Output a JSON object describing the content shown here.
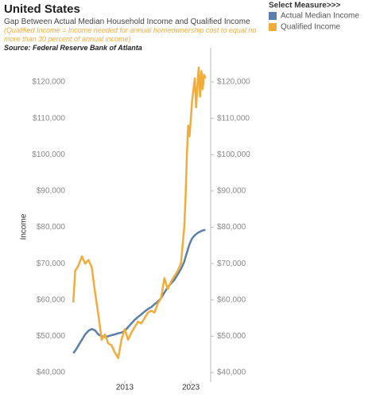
{
  "chart_data": {
    "type": "line",
    "title": "United States",
    "subtitle": "Gap Between Actual Median Household Income and Qualified Income",
    "note": "(Qualified Income = Income needed for annual homeownership cost to equal no more than 30 percent of annual income)",
    "source": "Source: Federal Reserve Bank of Atlanta",
    "legend_title": "Select Measure>>>",
    "y_label": "Income",
    "x": [
      2005.2,
      2005.5,
      2006,
      2006.5,
      2007,
      2007.5,
      2008,
      2008.5,
      2009,
      2009.5,
      2010,
      2010.5,
      2011,
      2011.5,
      2012,
      2012.5,
      2013,
      2013.5,
      2014,
      2014.5,
      2015,
      2015.5,
      2016,
      2016.5,
      2017,
      2017.5,
      2018,
      2018.5,
      2019,
      2019.5,
      2020,
      2020.5,
      2021,
      2021.5,
      2022,
      2022.2,
      2022.4,
      2022.6,
      2022.8,
      2023,
      2023.2,
      2023.4,
      2023.6,
      2023.8,
      2024,
      2024.2,
      2024.4,
      2024.6,
      2024.8,
      2025,
      2025.2
    ],
    "series": [
      {
        "name": "Actual Median Income",
        "color": "#5b7fa8",
        "values": [
          45300,
          46000,
          47500,
          49000,
          50500,
          51500,
          52000,
          51600,
          50500,
          50000,
          49800,
          50000,
          50300,
          50500,
          50800,
          51000,
          51500,
          52500,
          53500,
          54500,
          55300,
          56000,
          56800,
          57500,
          58000,
          58800,
          59500,
          60500,
          62000,
          63500,
          64500,
          65500,
          67000,
          68500,
          70500,
          71800,
          73000,
          74200,
          75300,
          76200,
          76900,
          77400,
          77800,
          78100,
          78400,
          78600,
          78800,
          79000,
          79100,
          79200,
          79300
        ]
      },
      {
        "name": "Qualified Income",
        "color": "#f2ac3c",
        "values": [
          59300,
          68000,
          69500,
          72000,
          70000,
          71000,
          69000,
          62000,
          56000,
          49000,
          50500,
          48000,
          47500,
          45500,
          44000,
          49000,
          52000,
          49000,
          51000,
          52500,
          54000,
          53500,
          55000,
          56500,
          57000,
          56500,
          59000,
          60500,
          66000,
          63000,
          65000,
          66500,
          68000,
          70000,
          80000,
          88000,
          100000,
          108000,
          105000,
          110000,
          115000,
          118000,
          121000,
          113000,
          119000,
          124000,
          116000,
          123000,
          118000,
          122000,
          121000
        ]
      }
    ],
    "xlim": [
      2004.7,
      2026
    ],
    "xticks": [
      2013,
      2023
    ],
    "ylim": [
      40000,
      120000
    ],
    "yticks": [
      {
        "value": 40000,
        "label": "$40,000"
      },
      {
        "value": 50000,
        "label": "$50,000"
      },
      {
        "value": 60000,
        "label": "$60,000"
      },
      {
        "value": 70000,
        "label": "$70,000"
      },
      {
        "value": 80000,
        "label": "$80,000"
      },
      {
        "value": 90000,
        "label": "$90,000"
      },
      {
        "value": 100000,
        "label": "$100,000"
      },
      {
        "value": 110000,
        "label": "$110,000"
      },
      {
        "value": 120000,
        "label": "$120,000"
      }
    ],
    "y2lim": [
      40000,
      120000
    ],
    "y2ticks": [
      {
        "value": 40000,
        "label": "$40,000"
      },
      {
        "value": 50000,
        "label": "$50,000"
      },
      {
        "value": 60000,
        "label": "$60,000"
      },
      {
        "value": 70000,
        "label": "$70,000"
      },
      {
        "value": 80000,
        "label": "$80,000"
      },
      {
        "value": 90000,
        "label": "$90,000"
      },
      {
        "value": 100000,
        "label": "$100,000"
      },
      {
        "value": 110000,
        "label": "$110,000"
      },
      {
        "value": 120000,
        "label": "$120,000"
      }
    ],
    "grid": false
  }
}
